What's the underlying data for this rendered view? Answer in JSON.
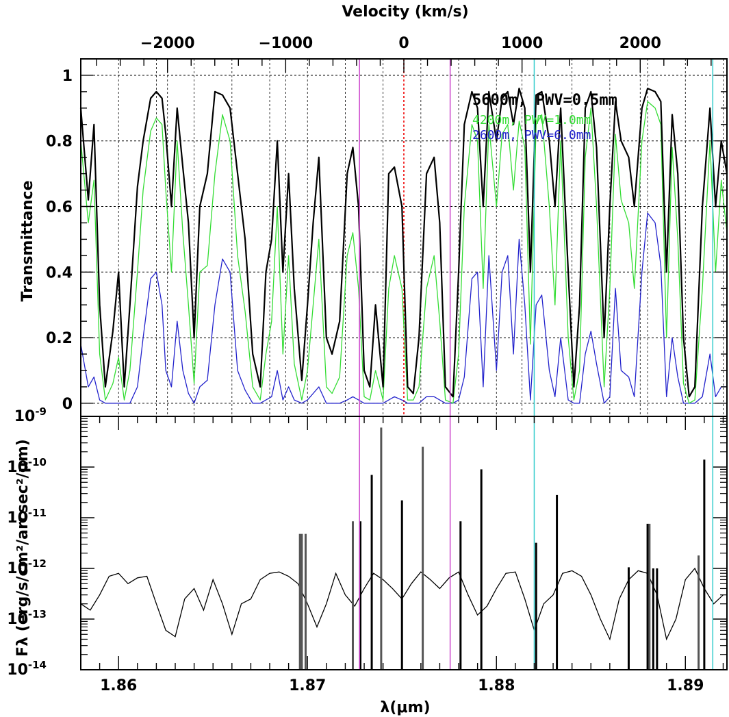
{
  "chart_data": [
    {
      "panel": "transmittance",
      "type": "line",
      "xlabel_top": "Velocity (km/s)",
      "ylabel": "Transmittance",
      "xlim": [
        1.858,
        1.8922
      ],
      "ylim": [
        -0.04,
        1.05
      ],
      "velocity_ticks": [
        "−2000",
        "−1000",
        "0",
        "1000",
        "2000"
      ],
      "velocity_values": [
        -2000,
        -1000,
        0,
        1000,
        2000
      ],
      "velocity_ref_um": 1.8751,
      "y_ticks": [
        "0",
        "0.2",
        "0.4",
        "0.6",
        "0.8",
        "1"
      ],
      "y_tick_values": [
        0,
        0.2,
        0.4,
        0.6,
        0.8,
        1.0
      ],
      "grid": true,
      "legend_position": "top-right",
      "series": [
        {
          "name": "5600m, PWV=0.5mm",
          "color": "#000000",
          "x": [
            1.858,
            1.8584,
            1.8587,
            1.859,
            1.8593,
            1.8597,
            1.86,
            1.8603,
            1.8606,
            1.861,
            1.8613,
            1.8617,
            1.862,
            1.8623,
            1.8625,
            1.8628,
            1.8631,
            1.8634,
            1.8637,
            1.864,
            1.8643,
            1.8647,
            1.8651,
            1.8655,
            1.8659,
            1.8663,
            1.8667,
            1.8671,
            1.8675,
            1.8678,
            1.8681,
            1.8684,
            1.8687,
            1.869,
            1.8693,
            1.8697,
            1.87,
            1.8703,
            1.8706,
            1.871,
            1.8713,
            1.8717,
            1.8721,
            1.8724,
            1.8727,
            1.873,
            1.8733,
            1.8736,
            1.874,
            1.8743,
            1.8746,
            1.875,
            1.8753,
            1.8756,
            1.8759,
            1.8763,
            1.8767,
            1.877,
            1.8773,
            1.8777,
            1.878,
            1.8783,
            1.8787,
            1.879,
            1.8793,
            1.8796,
            1.88,
            1.8803,
            1.8806,
            1.8809,
            1.8812,
            1.8815,
            1.8818,
            1.8821,
            1.8824,
            1.8828,
            1.8831,
            1.8834,
            1.8838,
            1.8841,
            1.8844,
            1.8847,
            1.885,
            1.8853,
            1.8857,
            1.886,
            1.8863,
            1.8866,
            1.887,
            1.8873,
            1.8877,
            1.888,
            1.8884,
            1.8887,
            1.889,
            1.8893,
            1.8896,
            1.8899,
            1.8902,
            1.8905,
            1.8909,
            1.8913,
            1.8916,
            1.8919,
            1.8922
          ],
          "y": [
            0.9,
            0.62,
            0.85,
            0.3,
            0.05,
            0.22,
            0.4,
            0.05,
            0.3,
            0.66,
            0.8,
            0.93,
            0.95,
            0.93,
            0.82,
            0.6,
            0.9,
            0.72,
            0.55,
            0.2,
            0.6,
            0.7,
            0.95,
            0.94,
            0.9,
            0.7,
            0.5,
            0.15,
            0.05,
            0.4,
            0.5,
            0.8,
            0.4,
            0.7,
            0.35,
            0.07,
            0.3,
            0.55,
            0.75,
            0.2,
            0.15,
            0.25,
            0.7,
            0.78,
            0.6,
            0.1,
            0.05,
            0.3,
            0.05,
            0.7,
            0.72,
            0.6,
            0.05,
            0.03,
            0.2,
            0.7,
            0.75,
            0.55,
            0.05,
            0.02,
            0.4,
            0.85,
            0.95,
            0.9,
            0.6,
            0.95,
            0.8,
            0.93,
            0.95,
            0.85,
            0.96,
            0.9,
            0.4,
            0.94,
            0.95,
            0.8,
            0.6,
            0.9,
            0.4,
            0.05,
            0.3,
            0.9,
            0.95,
            0.78,
            0.2,
            0.6,
            0.92,
            0.8,
            0.75,
            0.6,
            0.9,
            0.96,
            0.95,
            0.92,
            0.4,
            0.88,
            0.7,
            0.2,
            0.02,
            0.05,
            0.6,
            0.9,
            0.6,
            0.8,
            0.7
          ]
        },
        {
          "name": "4200m, PWV=1.0mm",
          "color": "#33dd33",
          "x": [
            1.858,
            1.8584,
            1.8587,
            1.859,
            1.8593,
            1.8597,
            1.86,
            1.8603,
            1.8606,
            1.861,
            1.8613,
            1.8617,
            1.862,
            1.8623,
            1.8625,
            1.8628,
            1.8631,
            1.8634,
            1.8637,
            1.864,
            1.8643,
            1.8647,
            1.8651,
            1.8655,
            1.8659,
            1.8663,
            1.8667,
            1.8671,
            1.8675,
            1.8678,
            1.8681,
            1.8684,
            1.8687,
            1.869,
            1.8693,
            1.8697,
            1.87,
            1.8703,
            1.8706,
            1.871,
            1.8713,
            1.8717,
            1.8721,
            1.8724,
            1.8727,
            1.873,
            1.8733,
            1.8736,
            1.874,
            1.8743,
            1.8746,
            1.875,
            1.8753,
            1.8756,
            1.8759,
            1.8763,
            1.8767,
            1.877,
            1.8773,
            1.8777,
            1.878,
            1.8783,
            1.8787,
            1.879,
            1.8793,
            1.8796,
            1.88,
            1.8803,
            1.8806,
            1.8809,
            1.8812,
            1.8815,
            1.8818,
            1.8821,
            1.8824,
            1.8828,
            1.8831,
            1.8834,
            1.8838,
            1.8841,
            1.8844,
            1.8847,
            1.885,
            1.8853,
            1.8857,
            1.886,
            1.8863,
            1.8866,
            1.887,
            1.8873,
            1.8877,
            1.888,
            1.8884,
            1.8887,
            1.889,
            1.8893,
            1.8896,
            1.8899,
            1.8902,
            1.8905,
            1.8909,
            1.8913,
            1.8916,
            1.8919,
            1.8922
          ],
          "y": [
            0.8,
            0.55,
            0.68,
            0.15,
            0.01,
            0.06,
            0.14,
            0.01,
            0.1,
            0.4,
            0.65,
            0.83,
            0.87,
            0.85,
            0.65,
            0.4,
            0.8,
            0.52,
            0.3,
            0.06,
            0.4,
            0.42,
            0.7,
            0.88,
            0.8,
            0.45,
            0.28,
            0.05,
            0.01,
            0.15,
            0.25,
            0.6,
            0.15,
            0.45,
            0.12,
            0.01,
            0.1,
            0.3,
            0.5,
            0.05,
            0.03,
            0.08,
            0.45,
            0.52,
            0.35,
            0.02,
            0.01,
            0.1,
            0.01,
            0.35,
            0.45,
            0.35,
            0.01,
            0.01,
            0.05,
            0.35,
            0.45,
            0.25,
            0.01,
            0.0,
            0.15,
            0.6,
            0.85,
            0.8,
            0.35,
            0.85,
            0.6,
            0.82,
            0.85,
            0.65,
            0.86,
            0.78,
            0.18,
            0.85,
            0.88,
            0.6,
            0.3,
            0.8,
            0.2,
            0.01,
            0.1,
            0.75,
            0.9,
            0.6,
            0.05,
            0.35,
            0.82,
            0.62,
            0.55,
            0.35,
            0.8,
            0.92,
            0.9,
            0.85,
            0.2,
            0.78,
            0.5,
            0.06,
            0.0,
            0.01,
            0.35,
            0.8,
            0.4,
            0.68,
            0.52
          ]
        },
        {
          "name": "2600m, PWV=6.0mm",
          "color": "#2222cc",
          "x": [
            1.858,
            1.8584,
            1.8587,
            1.859,
            1.8593,
            1.8597,
            1.86,
            1.8603,
            1.8606,
            1.861,
            1.8613,
            1.8617,
            1.862,
            1.8623,
            1.8625,
            1.8628,
            1.8631,
            1.8634,
            1.8637,
            1.864,
            1.8643,
            1.8647,
            1.8651,
            1.8655,
            1.8659,
            1.8663,
            1.8667,
            1.8671,
            1.8675,
            1.8678,
            1.8681,
            1.8684,
            1.8687,
            1.869,
            1.8693,
            1.8697,
            1.87,
            1.8703,
            1.8706,
            1.871,
            1.8713,
            1.8717,
            1.8721,
            1.8724,
            1.8727,
            1.873,
            1.8733,
            1.8736,
            1.874,
            1.8743,
            1.8746,
            1.875,
            1.8753,
            1.8756,
            1.8759,
            1.8763,
            1.8767,
            1.877,
            1.8773,
            1.8777,
            1.878,
            1.8783,
            1.8787,
            1.879,
            1.8793,
            1.8796,
            1.88,
            1.8803,
            1.8806,
            1.8809,
            1.8812,
            1.8815,
            1.8818,
            1.8821,
            1.8824,
            1.8828,
            1.8831,
            1.8834,
            1.8838,
            1.8841,
            1.8844,
            1.8847,
            1.885,
            1.8853,
            1.8857,
            1.886,
            1.8863,
            1.8866,
            1.887,
            1.8873,
            1.8877,
            1.888,
            1.8884,
            1.8887,
            1.889,
            1.8893,
            1.8896,
            1.8899,
            1.8902,
            1.8905,
            1.8909,
            1.8913,
            1.8916,
            1.8919,
            1.8922
          ],
          "y": [
            0.18,
            0.05,
            0.08,
            0.01,
            0.0,
            0.0,
            0.0,
            0.0,
            0.0,
            0.05,
            0.2,
            0.38,
            0.4,
            0.3,
            0.1,
            0.05,
            0.25,
            0.1,
            0.03,
            0.0,
            0.05,
            0.07,
            0.3,
            0.44,
            0.4,
            0.1,
            0.04,
            0.0,
            0.0,
            0.01,
            0.02,
            0.1,
            0.01,
            0.05,
            0.01,
            0.0,
            0.01,
            0.03,
            0.05,
            0.0,
            0.0,
            0.0,
            0.01,
            0.02,
            0.01,
            0.0,
            0.0,
            0.0,
            0.0,
            0.01,
            0.02,
            0.01,
            0.0,
            0.0,
            0.0,
            0.02,
            0.02,
            0.01,
            0.0,
            0.0,
            0.01,
            0.08,
            0.38,
            0.4,
            0.05,
            0.45,
            0.1,
            0.4,
            0.45,
            0.15,
            0.5,
            0.3,
            0.01,
            0.3,
            0.33,
            0.1,
            0.02,
            0.2,
            0.01,
            0.0,
            0.0,
            0.15,
            0.22,
            0.12,
            0.0,
            0.02,
            0.35,
            0.1,
            0.08,
            0.02,
            0.4,
            0.58,
            0.55,
            0.42,
            0.02,
            0.2,
            0.08,
            0.0,
            0.0,
            0.0,
            0.02,
            0.15,
            0.02,
            0.05,
            0.05
          ]
        }
      ]
    },
    {
      "panel": "flux",
      "type": "line",
      "xlabel": "λ(μm)",
      "ylabel": "Fλ (erg/s/cm²/arcsec²/μm)",
      "xlim": [
        1.858,
        1.8922
      ],
      "ylim_log10": [
        -14,
        -9
      ],
      "x_ticks": [
        "1.86",
        "1.87",
        "1.88",
        "1.89"
      ],
      "x_tick_values": [
        1.86,
        1.87,
        1.88,
        1.89
      ],
      "y_tick_exponents": [
        "-14",
        "-13",
        "-12",
        "-11",
        "-10",
        "-9"
      ],
      "y_scale": "log",
      "continuum": {
        "x": [
          1.858,
          1.8585,
          1.859,
          1.8595,
          1.86,
          1.8605,
          1.861,
          1.8615,
          1.862,
          1.8625,
          1.863,
          1.8635,
          1.864,
          1.8645,
          1.865,
          1.8655,
          1.866,
          1.8665,
          1.867,
          1.8675,
          1.868,
          1.8685,
          1.869,
          1.8695,
          1.87,
          1.8705,
          1.871,
          1.8715,
          1.872,
          1.8725,
          1.873,
          1.8735,
          1.874,
          1.8745,
          1.875,
          1.8755,
          1.876,
          1.8765,
          1.877,
          1.8775,
          1.878,
          1.8785,
          1.879,
          1.8795,
          1.88,
          1.8805,
          1.881,
          1.8815,
          1.882,
          1.8825,
          1.883,
          1.8835,
          1.884,
          1.8845,
          1.885,
          1.8855,
          1.886,
          1.8865,
          1.887,
          1.8875,
          1.888,
          1.8885,
          1.889,
          1.8895,
          1.89,
          1.8905,
          1.891,
          1.8915,
          1.892
        ],
        "y": [
          2e-13,
          1.5e-13,
          3e-13,
          7e-13,
          8e-13,
          5e-13,
          6.5e-13,
          7e-13,
          2e-13,
          6e-14,
          4.5e-14,
          2.5e-13,
          4e-13,
          1.5e-13,
          6e-13,
          2e-13,
          5e-14,
          2e-13,
          2.5e-13,
          6e-13,
          8e-13,
          8.5e-13,
          7e-13,
          5e-13,
          2e-13,
          7e-14,
          2e-13,
          8e-13,
          3e-13,
          1.8e-13,
          4e-13,
          8e-13,
          6e-13,
          4e-13,
          2.5e-13,
          5e-13,
          8.5e-13,
          6e-13,
          4e-13,
          6.5e-13,
          8.5e-13,
          3e-13,
          1.2e-13,
          1.8e-13,
          4e-13,
          8e-13,
          8.5e-13,
          2.5e-13,
          6e-14,
          2e-13,
          3e-13,
          8e-13,
          9e-13,
          7e-13,
          3e-13,
          1e-13,
          4e-14,
          2.5e-13,
          6e-13,
          9e-13,
          8e-13,
          3e-13,
          4e-14,
          1e-13,
          6e-13,
          1e-12,
          4e-13,
          2e-13,
          3e-13
        ]
      },
      "lines": [
        {
          "x": 1.8696,
          "flux": 4.8e-12,
          "color": "#555555"
        },
        {
          "x": 1.8697,
          "flux": 4.8e-12,
          "color": "#555555"
        },
        {
          "x": 1.8699,
          "flux": 4.8e-12,
          "color": "#555555"
        },
        {
          "x": 1.8724,
          "flux": 8.5e-12,
          "color": "#555555"
        },
        {
          "x": 1.8728,
          "flux": 8.5e-12,
          "color": "#000000"
        },
        {
          "x": 1.8734,
          "flux": 7e-11,
          "color": "#000000"
        },
        {
          "x": 1.8739,
          "flux": 6e-10,
          "color": "#555555"
        },
        {
          "x": 1.875,
          "flux": 2.2e-11,
          "color": "#000000"
        },
        {
          "x": 1.8761,
          "flux": 2.5e-10,
          "color": "#555555"
        },
        {
          "x": 1.8781,
          "flux": 8.5e-12,
          "color": "#000000"
        },
        {
          "x": 1.8792,
          "flux": 9e-11,
          "color": "#000000"
        },
        {
          "x": 1.8821,
          "flux": 3.2e-12,
          "color": "#000000"
        },
        {
          "x": 1.8832,
          "flux": 2.8e-11,
          "color": "#000000"
        },
        {
          "x": 1.887,
          "flux": 1.05e-12,
          "color": "#000000"
        },
        {
          "x": 1.888,
          "flux": 7.6e-12,
          "color": "#000000"
        },
        {
          "x": 1.8881,
          "flux": 7.6e-12,
          "color": "#555555"
        },
        {
          "x": 1.8883,
          "flux": 1e-12,
          "color": "#000000"
        },
        {
          "x": 1.8885,
          "flux": 1e-12,
          "color": "#000000"
        },
        {
          "x": 1.8907,
          "flux": 1.8e-12,
          "color": "#555555"
        },
        {
          "x": 1.891,
          "flux": 1.4e-10,
          "color": "#000000"
        }
      ]
    }
  ],
  "markers": [
    {
      "x": 1.87275,
      "color": "#cc44cc"
    },
    {
      "x": 1.87755,
      "color": "#cc44cc"
    },
    {
      "x": 1.882,
      "color": "#33cccc"
    },
    {
      "x": 1.89145,
      "color": "#33cccc"
    }
  ],
  "zero_velocity_color": "#ee0000"
}
